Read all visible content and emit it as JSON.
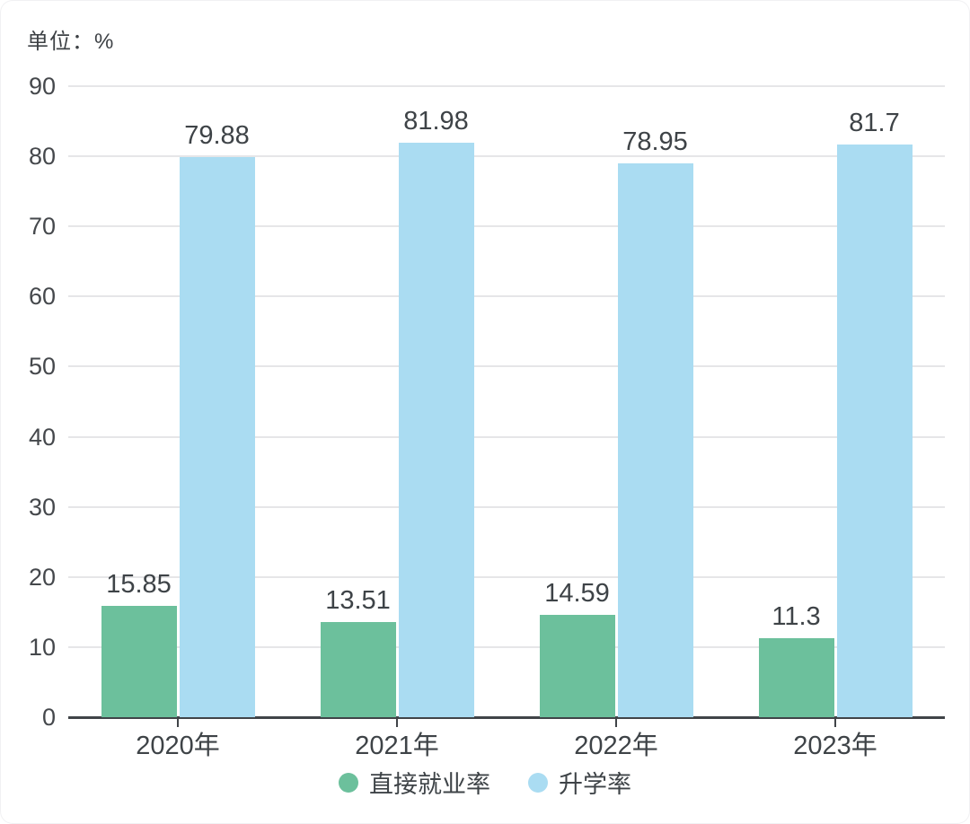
{
  "chart_data": {
    "type": "bar",
    "unit_label": "单位：%",
    "categories": [
      "2020年",
      "2021年",
      "2022年",
      "2023年"
    ],
    "series": [
      {
        "name": "直接就业率",
        "color": "#6CC09C",
        "values": [
          15.85,
          13.51,
          14.59,
          11.3
        ],
        "labels": [
          "15.85",
          "13.51",
          "14.59",
          "11.3"
        ]
      },
      {
        "name": "升学率",
        "color": "#AADCF2",
        "values": [
          79.88,
          81.98,
          78.95,
          81.7
        ],
        "labels": [
          "79.88",
          "81.98",
          "78.95",
          "81.7"
        ]
      }
    ],
    "ylim": [
      0,
      90
    ],
    "ytick_interval": 10,
    "yticks": [
      "0",
      "10",
      "20",
      "30",
      "40",
      "50",
      "60",
      "70",
      "80",
      "90"
    ],
    "grid": "horizontal",
    "legend_position": "bottom",
    "colors": {
      "grid": "#e6e6e8",
      "axis": "#404448",
      "text": "#3e4347"
    }
  }
}
